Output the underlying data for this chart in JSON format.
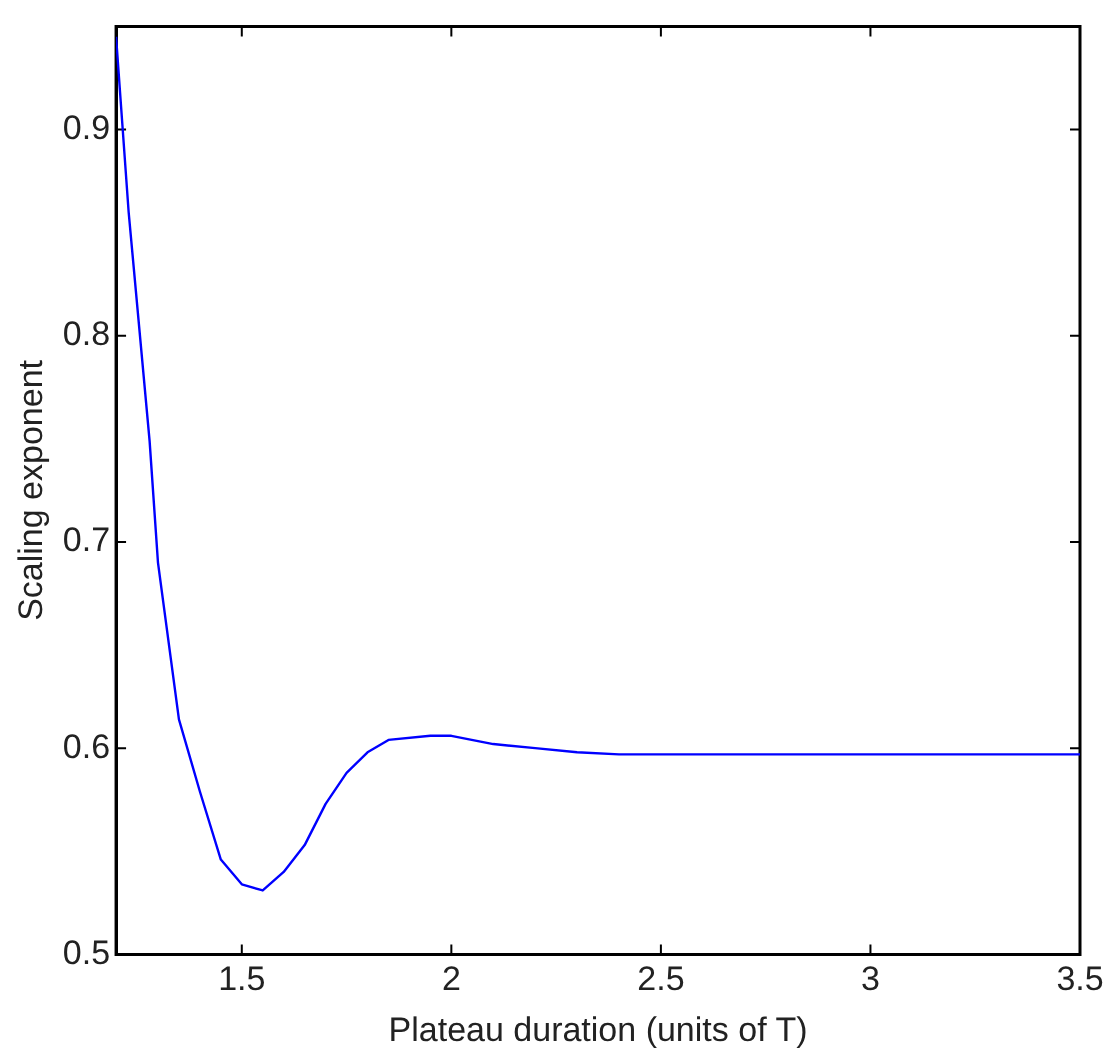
{
  "chart_data": {
    "type": "line",
    "xlabel": "Plateau duration (units of T)",
    "ylabel": "Scaling exponent",
    "x": [
      1.2,
      1.23,
      1.28,
      1.3,
      1.35,
      1.4,
      1.45,
      1.5,
      1.55,
      1.6,
      1.65,
      1.7,
      1.75,
      1.8,
      1.85,
      1.95,
      2.0,
      2.1,
      2.2,
      2.3,
      2.4,
      2.6,
      3.0,
      3.5
    ],
    "series": [
      {
        "color": "#0000ff",
        "values": [
          0.945,
          0.86,
          0.749,
          0.69,
          0.614,
          0.579,
          0.546,
          0.534,
          0.531,
          0.54,
          0.553,
          0.573,
          0.588,
          0.598,
          0.604,
          0.606,
          0.606,
          0.602,
          0.6,
          0.598,
          0.597,
          0.597,
          0.597,
          0.597
        ]
      }
    ],
    "xlim": [
      1.2,
      3.5
    ],
    "ylim": [
      0.5,
      0.95
    ],
    "xticks": [
      1.5,
      2,
      2.5,
      3,
      3.5
    ],
    "yticks": [
      0.5,
      0.6,
      0.7,
      0.8,
      0.9
    ],
    "grid": false,
    "legend": false,
    "marker": "none",
    "line_style": "solid"
  }
}
